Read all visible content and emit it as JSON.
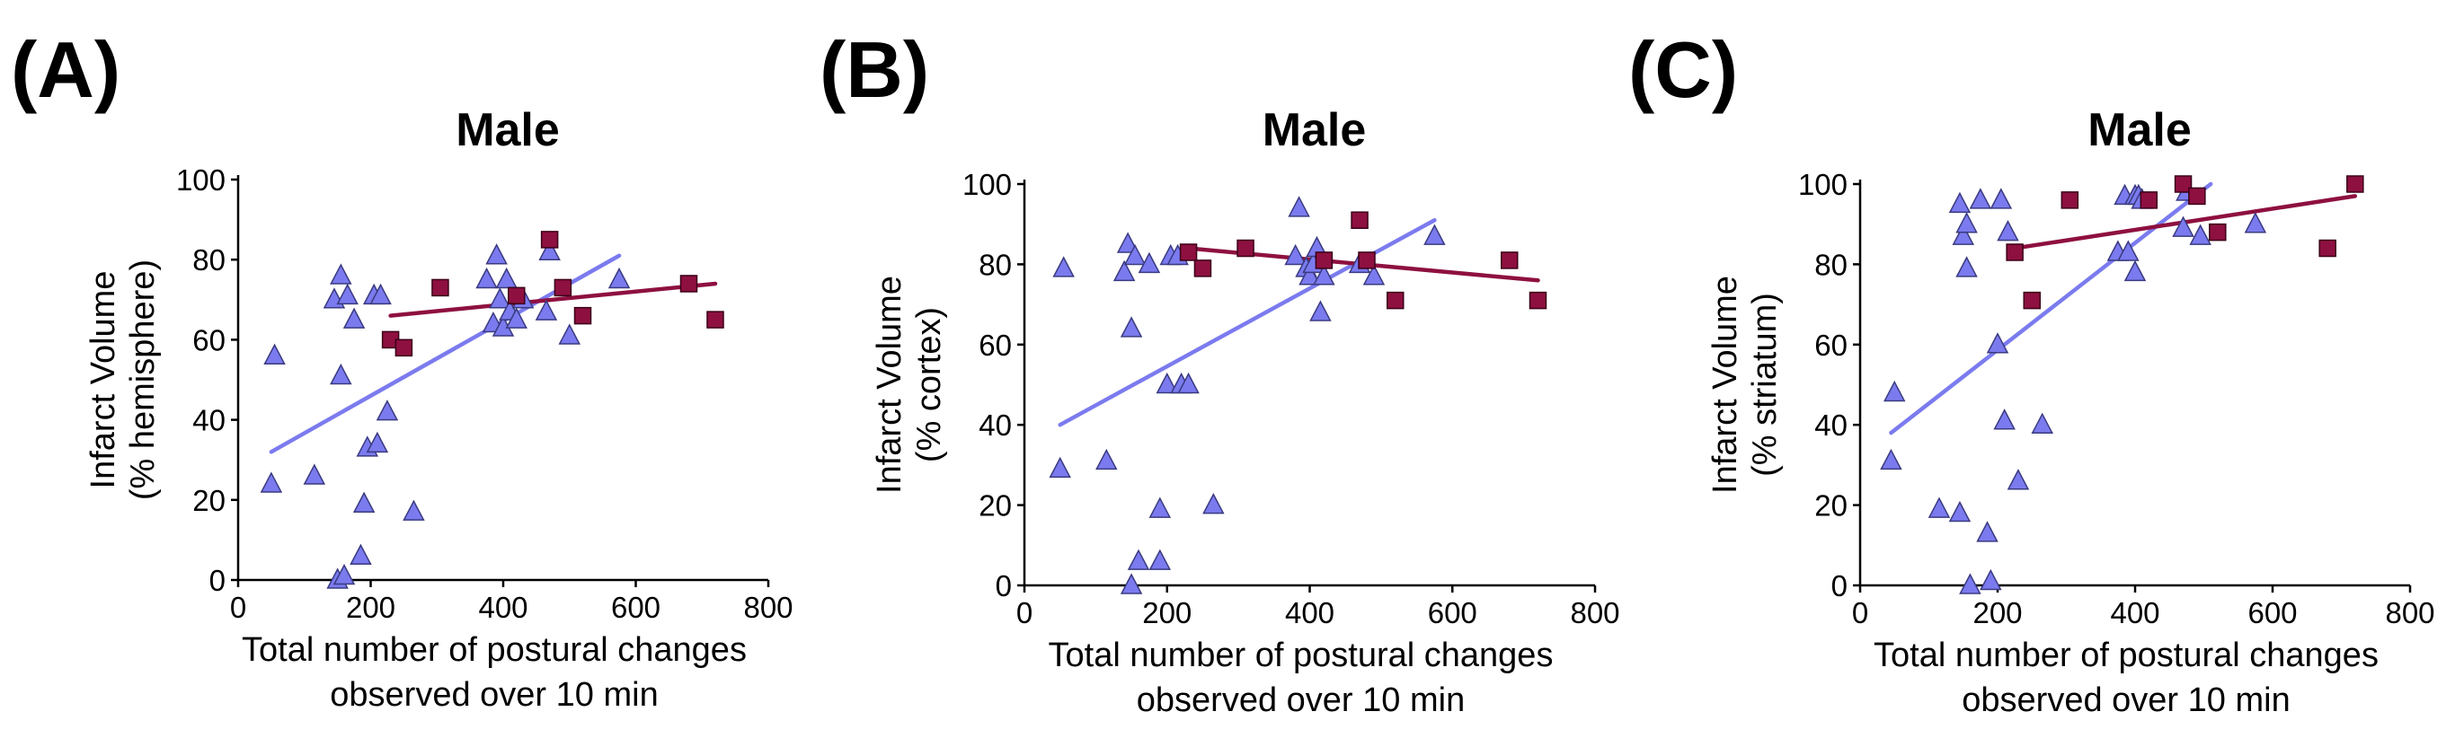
{
  "chart_data": [
    {
      "type": "scatter",
      "panel_label": "(A)",
      "title": "Male",
      "ylabel_lines": [
        "Infarct Volume",
        "(% hemisphere)"
      ],
      "xlabel_lines": [
        "Total number of postural changes",
        "observed over 10 min"
      ],
      "xlim": [
        0,
        800
      ],
      "ylim": [
        0,
        100
      ],
      "xticks": [
        0,
        200,
        400,
        600,
        800
      ],
      "yticks": [
        0,
        20,
        40,
        60,
        80,
        100
      ],
      "series": [
        {
          "name": "triangles",
          "marker": "triangle",
          "color": "#7b7bef",
          "points": [
            [
              50,
              24
            ],
            [
              55,
              56
            ],
            [
              115,
              26
            ],
            [
              145,
              70
            ],
            [
              150,
              0
            ],
            [
              155,
              51
            ],
            [
              155,
              76
            ],
            [
              160,
              1
            ],
            [
              165,
              71
            ],
            [
              175,
              65
            ],
            [
              185,
              6
            ],
            [
              190,
              19
            ],
            [
              195,
              33
            ],
            [
              205,
              71
            ],
            [
              210,
              34
            ],
            [
              215,
              71
            ],
            [
              225,
              42
            ],
            [
              265,
              17
            ],
            [
              375,
              75
            ],
            [
              385,
              64
            ],
            [
              390,
              81
            ],
            [
              395,
              70
            ],
            [
              400,
              63
            ],
            [
              405,
              75
            ],
            [
              410,
              67
            ],
            [
              420,
              65
            ],
            [
              430,
              70
            ],
            [
              465,
              67
            ],
            [
              470,
              82
            ],
            [
              500,
              61
            ],
            [
              575,
              75
            ]
          ],
          "fit": [
            [
              50,
              32
            ],
            [
              575,
              81
            ]
          ]
        },
        {
          "name": "squares",
          "marker": "square",
          "color": "#8e1040",
          "points": [
            [
              230,
              60
            ],
            [
              250,
              58
            ],
            [
              305,
              73
            ],
            [
              420,
              71
            ],
            [
              470,
              85
            ],
            [
              490,
              73
            ],
            [
              520,
              66
            ],
            [
              680,
              74
            ],
            [
              720,
              65
            ]
          ],
          "fit": [
            [
              230,
              66
            ],
            [
              720,
              74
            ]
          ]
        }
      ]
    },
    {
      "type": "scatter",
      "panel_label": "(B)",
      "title": "Male",
      "ylabel_lines": [
        "Infarct Volume",
        "(% cortex)"
      ],
      "xlabel_lines": [
        "Total number of postural changes",
        "observed over 10 min"
      ],
      "xlim": [
        0,
        800
      ],
      "ylim": [
        0,
        100
      ],
      "xticks": [
        0,
        200,
        400,
        600,
        800
      ],
      "yticks": [
        0,
        20,
        40,
        60,
        80,
        100
      ],
      "series": [
        {
          "name": "triangles",
          "marker": "triangle",
          "color": "#7b7bef",
          "points": [
            [
              50,
              29
            ],
            [
              55,
              79
            ],
            [
              115,
              31
            ],
            [
              140,
              78
            ],
            [
              145,
              85
            ],
            [
              150,
              0
            ],
            [
              150,
              64
            ],
            [
              155,
              82
            ],
            [
              160,
              6
            ],
            [
              175,
              80
            ],
            [
              190,
              6
            ],
            [
              190,
              19
            ],
            [
              200,
              50
            ],
            [
              205,
              82
            ],
            [
              215,
              82
            ],
            [
              220,
              50
            ],
            [
              230,
              50
            ],
            [
              265,
              20
            ],
            [
              380,
              82
            ],
            [
              385,
              94
            ],
            [
              395,
              79
            ],
            [
              400,
              77
            ],
            [
              405,
              80
            ],
            [
              410,
              84
            ],
            [
              415,
              68
            ],
            [
              420,
              77
            ],
            [
              470,
              80
            ],
            [
              490,
              77
            ],
            [
              575,
              87
            ]
          ],
          "fit": [
            [
              50,
              40
            ],
            [
              575,
              91
            ]
          ]
        },
        {
          "name": "squares",
          "marker": "square",
          "color": "#8e1040",
          "points": [
            [
              230,
              83
            ],
            [
              250,
              79
            ],
            [
              310,
              84
            ],
            [
              420,
              81
            ],
            [
              470,
              91
            ],
            [
              480,
              81
            ],
            [
              520,
              71
            ],
            [
              680,
              81
            ],
            [
              720,
              71
            ]
          ],
          "fit": [
            [
              230,
              84
            ],
            [
              720,
              76
            ]
          ]
        }
      ]
    },
    {
      "type": "scatter",
      "panel_label": "(C)",
      "title": "Male",
      "ylabel_lines": [
        "Infarct Volume",
        "(% striatum)"
      ],
      "xlabel_lines": [
        "Total number of postural changes",
        "observed over 10 min"
      ],
      "xlim": [
        0,
        800
      ],
      "ylim": [
        0,
        100
      ],
      "xticks": [
        0,
        200,
        400,
        600,
        800
      ],
      "yticks": [
        0,
        20,
        40,
        60,
        80,
        100
      ],
      "series": [
        {
          "name": "triangles",
          "marker": "triangle",
          "color": "#7b7bef",
          "points": [
            [
              45,
              31
            ],
            [
              50,
              48
            ],
            [
              115,
              19
            ],
            [
              145,
              18
            ],
            [
              145,
              95
            ],
            [
              150,
              87
            ],
            [
              155,
              79
            ],
            [
              155,
              90
            ],
            [
              160,
              0
            ],
            [
              175,
              96
            ],
            [
              185,
              13
            ],
            [
              190,
              1
            ],
            [
              200,
              60
            ],
            [
              205,
              96
            ],
            [
              210,
              41
            ],
            [
              215,
              88
            ],
            [
              230,
              26
            ],
            [
              265,
              40
            ],
            [
              375,
              83
            ],
            [
              385,
              97
            ],
            [
              390,
              83
            ],
            [
              400,
              78
            ],
            [
              400,
              97
            ],
            [
              405,
              97
            ],
            [
              410,
              96
            ],
            [
              470,
              89
            ],
            [
              475,
              98
            ],
            [
              495,
              87
            ],
            [
              575,
              90
            ]
          ],
          "fit": [
            [
              45,
              38
            ],
            [
              510,
              100
            ]
          ]
        },
        {
          "name": "squares",
          "marker": "square",
          "color": "#8e1040",
          "points": [
            [
              225,
              83
            ],
            [
              250,
              71
            ],
            [
              305,
              96
            ],
            [
              420,
              96
            ],
            [
              470,
              100
            ],
            [
              490,
              97
            ],
            [
              520,
              88
            ],
            [
              680,
              84
            ],
            [
              720,
              100
            ]
          ],
          "fit": [
            [
              225,
              84
            ],
            [
              720,
              97
            ]
          ]
        }
      ]
    }
  ]
}
